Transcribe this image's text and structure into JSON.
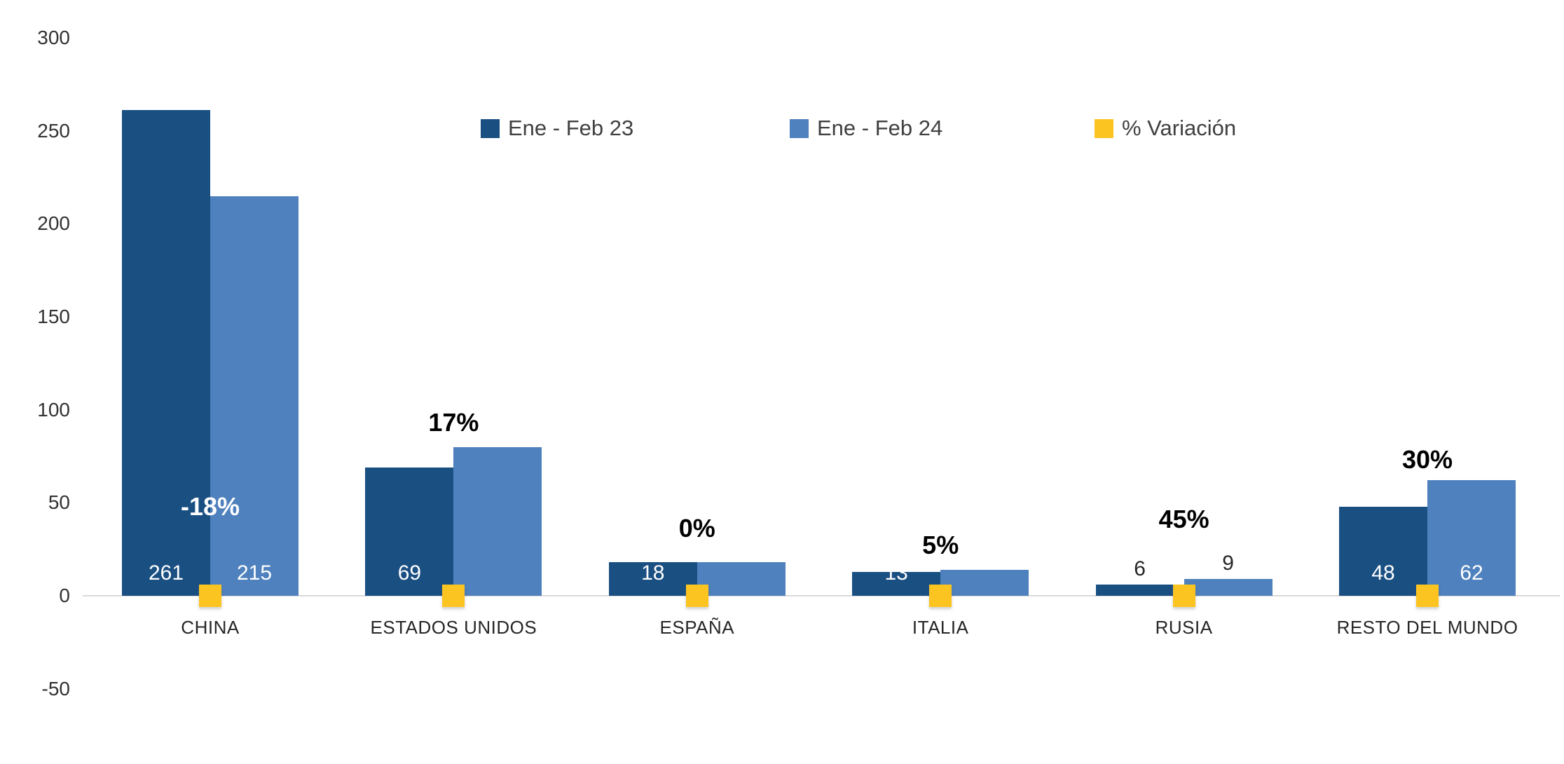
{
  "chart_data": {
    "type": "bar",
    "title": "",
    "xlabel": "",
    "ylabel": "",
    "ylim": [
      -50,
      300
    ],
    "yticks": [
      300,
      250,
      200,
      150,
      100,
      50,
      0,
      -50
    ],
    "grid": false,
    "legend_position": "top",
    "categories": [
      "CHINA",
      "ESTADOS UNIDOS",
      "ESPAÑA",
      "ITALIA",
      "RUSIA",
      "RESTO DEL MUNDO"
    ],
    "series": [
      {
        "name": "Ene - Feb 23",
        "color": "#1A4F82",
        "values": [
          261,
          69,
          18,
          13,
          6,
          48
        ]
      },
      {
        "name": "Ene - Feb 24",
        "color": "#4E81BD",
        "values": [
          215,
          80,
          18,
          14,
          9,
          62
        ]
      },
      {
        "name": "% Variación",
        "color": "#FCC420",
        "values": [
          -18,
          17,
          0,
          5,
          45,
          30
        ],
        "marker": "square-at-baseline"
      }
    ],
    "groups": [
      {
        "category": "CHINA",
        "label23": {
          "text": "261",
          "placement": "inside"
        },
        "label24": {
          "text": "215",
          "placement": "inside"
        },
        "pct_label": {
          "text": "-18%",
          "color": "#FFFFFF",
          "y_value": 48
        }
      },
      {
        "category": "ESTADOS UNIDOS",
        "label23": {
          "text": "69",
          "placement": "inside"
        },
        "label24": null,
        "pct_label": {
          "text": "17%",
          "color": "#000000",
          "y_value": 93
        }
      },
      {
        "category": "ESPAÑA",
        "label23": {
          "text": "18",
          "placement": "inside"
        },
        "label24": null,
        "pct_label": {
          "text": "0%",
          "color": "#000000",
          "y_value": 36
        }
      },
      {
        "category": "ITALIA",
        "label23": {
          "text": "13",
          "placement": "inside"
        },
        "label24": null,
        "pct_label": {
          "text": "5%",
          "color": "#000000",
          "y_value": 27
        }
      },
      {
        "category": "RUSIA",
        "label23": {
          "text": "6",
          "placement": "outside"
        },
        "label24": {
          "text": "9",
          "placement": "outside"
        },
        "pct_label": {
          "text": "45%",
          "color": "#000000",
          "y_value": 41
        }
      },
      {
        "category": "RESTO DEL MUNDO",
        "label23": {
          "text": "48",
          "placement": "inside"
        },
        "label24": {
          "text": "62",
          "placement": "inside"
        },
        "pct_label": {
          "text": "30%",
          "color": "#000000",
          "y_value": 73
        }
      }
    ],
    "colors": {
      "bar_23": "#1A4F82",
      "bar_24": "#4E81BD",
      "variation_marker": "#FCC420",
      "baseline": "#D9D9D9",
      "axis_text": "#333333",
      "value_text_inside": "#FFFFFF",
      "value_text_outside": "#262626",
      "pct_text": "#000000",
      "background": "#FFFFFF"
    }
  },
  "legend": {
    "items": [
      {
        "label": "Ene - Feb 23",
        "color": "#1A4F82"
      },
      {
        "label": "Ene - Feb 24",
        "color": "#4E81BD"
      },
      {
        "label": "% Variación",
        "color": "#FCC420"
      }
    ]
  }
}
